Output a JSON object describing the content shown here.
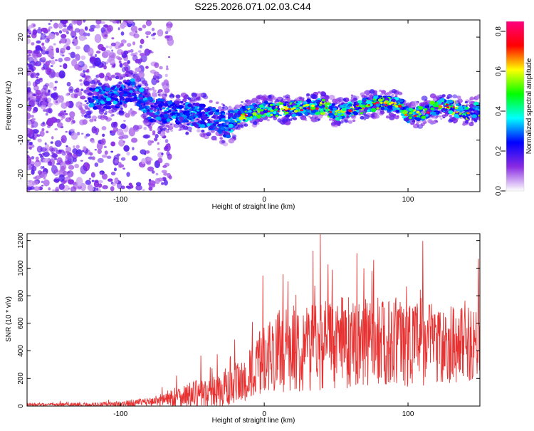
{
  "title": "S225.2026.071.02.03.C44",
  "chart_data": [
    {
      "type": "heatmap",
      "xlabel": "Height of straight line (km)",
      "ylabel": "Frequency (Hz)",
      "xlim": [
        -165,
        150
      ],
      "ylim": [
        -25,
        25
      ],
      "x_ticks": [
        -100,
        0,
        100
      ],
      "y_ticks": [
        -20,
        -10,
        0,
        10,
        20
      ],
      "colorbar": {
        "label": "Normalized spectral amplitude",
        "range": [
          0,
          0.85
        ],
        "ticks": [
          0.0,
          0.2,
          0.4,
          0.6,
          0.8
        ],
        "colors": [
          "#ffffff",
          "#8a2be2",
          "#0000ff",
          "#00ffff",
          "#00ff00",
          "#ffff00",
          "#ff0000",
          "#ff0080"
        ]
      },
      "ridge_center_hz": {
        "x": [
          -120,
          -100,
          -90,
          -80,
          -60,
          -40,
          -25,
          -20,
          0,
          20,
          40,
          50,
          60,
          80,
          95,
          100,
          110,
          125,
          140,
          150
        ],
        "y": [
          2,
          3,
          5,
          -1,
          -2,
          -3,
          -6,
          -3,
          -1,
          -1,
          0,
          -2,
          -1,
          1,
          0,
          -3,
          -2,
          0,
          -2,
          -1
        ]
      }
    },
    {
      "type": "line",
      "xlabel": "Height of straight line (km)",
      "ylabel": "SNR (10 * v/v)",
      "xlim": [
        -165,
        150
      ],
      "ylim": [
        0,
        1250
      ],
      "x_ticks": [
        -100,
        0,
        100
      ],
      "y_ticks": [
        0,
        200,
        400,
        600,
        800,
        1000,
        1200
      ],
      "series": [
        {
          "color": "#e83232",
          "envelope": {
            "x": [
              -165,
              -120,
              -100,
              -80,
              -70,
              -60,
              -50,
              -40,
              -30,
              -20,
              -10,
              0,
              10,
              20,
              30,
              40,
              60,
              80,
              100,
              110,
              120,
              140,
              150
            ],
            "baseline": [
              10,
              10,
              15,
              30,
              50,
              70,
              80,
              90,
              110,
              130,
              220,
              350,
              400,
              420,
              440,
              450,
              460,
              470,
              470,
              470,
              460,
              450,
              440
            ],
            "amplitude": [
              10,
              15,
              20,
              30,
              50,
              80,
              100,
              110,
              130,
              160,
              200,
              250,
              300,
              320,
              330,
              340,
              330,
              320,
              330,
              330,
              300,
              280,
              250
            ]
          }
        }
      ]
    }
  ]
}
